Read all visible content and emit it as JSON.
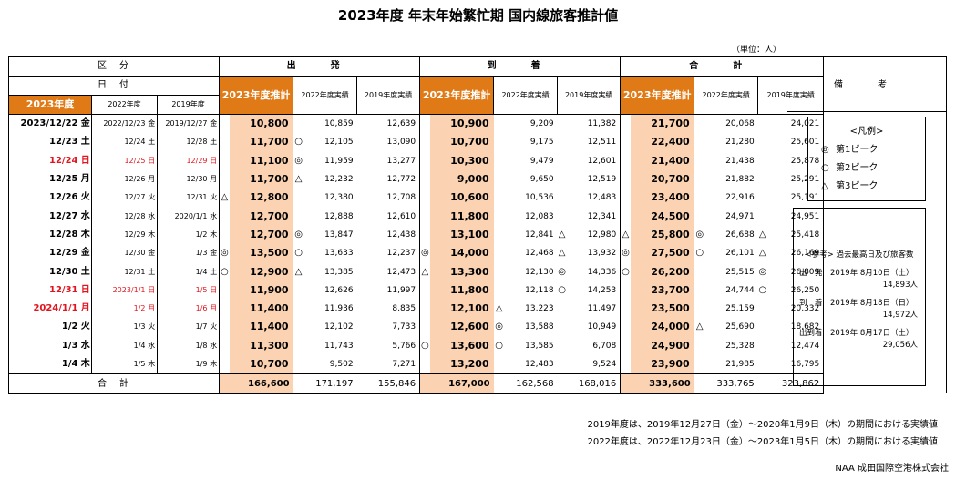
{
  "title": "2023年度 年末年始繁忙期 国内線旅客推計値",
  "unit": "（単位：人）",
  "headers": {
    "kubun": "区　分",
    "hiduke": "日　付",
    "fy2023": "2023年度",
    "fy2022": "2022年度",
    "fy2019": "2019年度",
    "departure": "出　発",
    "arrival": "到　着",
    "total": "合　計",
    "remarks": "備　考",
    "est": "2023年度推計",
    "act2022": "2022年度実績",
    "act2019": "2019年度実績"
  },
  "rows": [
    {
      "d23": "2023/12/22",
      "w23": "金",
      "d22": "2022/12/23",
      "w22": "金",
      "d19": "2019/12/27",
      "w19": "金",
      "red": false,
      "dep": [
        "10,800",
        "10,859",
        "",
        "12,639"
      ],
      "depm": [
        "",
        ""
      ],
      "arr": [
        "10,900",
        "9,209",
        "",
        "11,382"
      ],
      "arrm": [
        "",
        ""
      ],
      "tot": [
        "21,700",
        "20,068",
        "",
        "24,021"
      ],
      "totm": [
        "",
        ""
      ]
    },
    {
      "d23": "12/23",
      "w23": "土",
      "d22": "12/24",
      "w22": "土",
      "d19": "12/28",
      "w19": "土",
      "red": false,
      "dep": [
        "11,700",
        "12,105",
        "",
        "13,090"
      ],
      "depm": [
        "",
        "○"
      ],
      "arr": [
        "10,700",
        "9,175",
        "",
        "12,511"
      ],
      "arrm": [
        "",
        ""
      ],
      "tot": [
        "22,400",
        "21,280",
        "",
        "25,601"
      ],
      "totm": [
        "",
        ""
      ]
    },
    {
      "d23": "12/24",
      "w23": "日",
      "d22": "12/25",
      "w22": "日",
      "d19": "12/29",
      "w19": "日",
      "red": true,
      "dep": [
        "11,100",
        "11,959",
        "",
        "13,277"
      ],
      "depm": [
        "",
        "◎"
      ],
      "arr": [
        "10,300",
        "9,479",
        "",
        "12,601"
      ],
      "arrm": [
        "",
        ""
      ],
      "tot": [
        "21,400",
        "21,438",
        "",
        "25,878"
      ],
      "totm": [
        "",
        ""
      ]
    },
    {
      "d23": "12/25",
      "w23": "月",
      "d22": "12/26",
      "w22": "月",
      "d19": "12/30",
      "w19": "月",
      "red": false,
      "dep": [
        "11,700",
        "12,232",
        "",
        "12,772"
      ],
      "depm": [
        "",
        "△"
      ],
      "arr": [
        "9,000",
        "9,650",
        "",
        "12,519"
      ],
      "arrm": [
        "",
        ""
      ],
      "tot": [
        "20,700",
        "21,882",
        "",
        "25,291"
      ],
      "totm": [
        "",
        ""
      ]
    },
    {
      "d23": "12/26",
      "w23": "火",
      "d22": "12/27",
      "w22": "火",
      "d19": "12/31",
      "w19": "火",
      "red": false,
      "dep": [
        "12,800",
        "12,380",
        "",
        "12,708"
      ],
      "depm": [
        "△",
        ""
      ],
      "arr": [
        "10,600",
        "10,536",
        "",
        "12,483"
      ],
      "arrm": [
        "",
        ""
      ],
      "tot": [
        "23,400",
        "22,916",
        "",
        "25,191"
      ],
      "totm": [
        "",
        ""
      ]
    },
    {
      "d23": "12/27",
      "w23": "水",
      "d22": "12/28",
      "w22": "水",
      "d19": "2020/1/1",
      "w19": "水",
      "red": false,
      "dep": [
        "12,700",
        "12,888",
        "",
        "12,610"
      ],
      "depm": [
        "",
        ""
      ],
      "arr": [
        "11,800",
        "12,083",
        "",
        "12,341"
      ],
      "arrm": [
        "",
        ""
      ],
      "tot": [
        "24,500",
        "24,971",
        "",
        "24,951"
      ],
      "totm": [
        "",
        ""
      ]
    },
    {
      "d23": "12/28",
      "w23": "木",
      "d22": "12/29",
      "w22": "木",
      "d19": "1/2",
      "w19": "木",
      "red": false,
      "dep": [
        "12,700",
        "13,847",
        "",
        "12,438"
      ],
      "depm": [
        "",
        "◎"
      ],
      "arr": [
        "13,100",
        "12,841",
        "",
        "12,980"
      ],
      "arrm": [
        "",
        ""
      ],
      "tot": [
        "25,800",
        "26,688",
        "",
        "25,418"
      ],
      "totm": [
        "△",
        "◎"
      ],
      "arrm2": "△",
      "totm2": "△"
    },
    {
      "d23": "12/29",
      "w23": "金",
      "d22": "12/30",
      "w22": "金",
      "d19": "1/3",
      "w19": "金",
      "red": false,
      "dep": [
        "13,500",
        "13,633",
        "",
        "12,237"
      ],
      "depm": [
        "◎",
        "○"
      ],
      "arr": [
        "14,000",
        "12,468",
        "",
        "13,932"
      ],
      "arrm": [
        "◎",
        ""
      ],
      "tot": [
        "27,500",
        "26,101",
        "",
        "26,169"
      ],
      "totm": [
        "◎",
        "○"
      ],
      "arrm2": "△",
      "totm2": "△"
    },
    {
      "d23": "12/30",
      "w23": "土",
      "d22": "12/31",
      "w22": "土",
      "d19": "1/4",
      "w19": "土",
      "red": false,
      "dep": [
        "12,900",
        "13,385",
        "",
        "12,473"
      ],
      "depm": [
        "○",
        "△"
      ],
      "arr": [
        "13,300",
        "12,130",
        "",
        "14,336"
      ],
      "arrm": [
        "△",
        ""
      ],
      "tot": [
        "26,200",
        "25,515",
        "",
        "26,809"
      ],
      "totm": [
        "○",
        ""
      ],
      "arrm2": "◎",
      "totm2": "◎"
    },
    {
      "d23": "12/31",
      "w23": "日",
      "d22": "2023/1/1",
      "w22": "日",
      "d19": "1/5",
      "w19": "日",
      "red": true,
      "dep": [
        "11,900",
        "12,626",
        "",
        "11,997"
      ],
      "depm": [
        "",
        ""
      ],
      "arr": [
        "11,800",
        "12,118",
        "",
        "14,253"
      ],
      "arrm": [
        "",
        ""
      ],
      "tot": [
        "23,700",
        "24,744",
        "",
        "26,250"
      ],
      "totm": [
        "",
        ""
      ],
      "arrm2": "○",
      "totm2": "○"
    },
    {
      "d23": "2024/1/1",
      "w23": "月",
      "d22": "1/2",
      "w22": "月",
      "d19": "1/6",
      "w19": "月",
      "red": true,
      "dep": [
        "11,400",
        "11,936",
        "",
        "8,835"
      ],
      "depm": [
        "",
        ""
      ],
      "arr": [
        "12,100",
        "13,223",
        "",
        "11,497"
      ],
      "arrm": [
        "",
        "△"
      ],
      "tot": [
        "23,500",
        "25,159",
        "",
        "20,332"
      ],
      "totm": [
        "",
        ""
      ]
    },
    {
      "d23": "1/2",
      "w23": "火",
      "d22": "1/3",
      "w22": "火",
      "d19": "1/7",
      "w19": "火",
      "red": false,
      "dep": [
        "11,400",
        "12,102",
        "",
        "7,733"
      ],
      "depm": [
        "",
        ""
      ],
      "arr": [
        "12,600",
        "13,588",
        "",
        "10,949"
      ],
      "arrm": [
        "",
        "◎"
      ],
      "tot": [
        "24,000",
        "25,690",
        "",
        "18,682"
      ],
      "totm": [
        "",
        "△"
      ]
    },
    {
      "d23": "1/3",
      "w23": "水",
      "d22": "1/4",
      "w22": "水",
      "d19": "1/8",
      "w19": "水",
      "red": false,
      "dep": [
        "11,300",
        "11,743",
        "",
        "5,766"
      ],
      "depm": [
        "",
        ""
      ],
      "arr": [
        "13,600",
        "13,585",
        "",
        "6,708"
      ],
      "arrm": [
        "○",
        "○"
      ],
      "tot": [
        "24,900",
        "25,328",
        "",
        "12,474"
      ],
      "totm": [
        "",
        ""
      ]
    },
    {
      "d23": "1/4",
      "w23": "木",
      "d22": "1/5",
      "w22": "木",
      "d19": "1/9",
      "w19": "木",
      "red": false,
      "dep": [
        "10,700",
        "9,502",
        "",
        "7,271"
      ],
      "depm": [
        "",
        ""
      ],
      "arr": [
        "13,200",
        "12,483",
        "",
        "9,524"
      ],
      "arrm": [
        "",
        ""
      ],
      "tot": [
        "23,900",
        "21,985",
        "",
        "16,795"
      ],
      "totm": [
        "",
        ""
      ]
    }
  ],
  "total_row": {
    "label": "合　計",
    "dep": [
      "166,600",
      "171,197",
      "155,846"
    ],
    "arr": [
      "167,000",
      "162,568",
      "168,016"
    ],
    "tot": [
      "333,600",
      "333,765",
      "323,862"
    ]
  },
  "legend": {
    "title": "<凡例>",
    "items": [
      {
        "symbol": "◎",
        "label": "第1ピーク"
      },
      {
        "symbol": "○",
        "label": "第2ピーク"
      },
      {
        "symbol": "△",
        "label": "第3ピーク"
      }
    ]
  },
  "reference": {
    "title": "<参考> 過去最高日及び旅客数",
    "items": [
      {
        "label": "出　発　2019年 8月10日（土）",
        "value": "14,893人"
      },
      {
        "label": "到　着　2019年 8月18日（日）",
        "value": "14,972人"
      },
      {
        "label": "出到着　2019年 8月17日（土）",
        "value": "29,056人"
      }
    ]
  },
  "footnotes": [
    "2019年度は、2019年12月27日（金）～2020年1月9日（木）の期間における実績値",
    "2022年度は、2022年12月23日（金）～2023年1月5日（木）の期間における実績値"
  ],
  "company": "NAA 成田国際空港株式会社",
  "colors": {
    "header_orange": "#e07a17",
    "estimate_peach": "#fbd3b2",
    "holiday_red": "#e0141e"
  }
}
